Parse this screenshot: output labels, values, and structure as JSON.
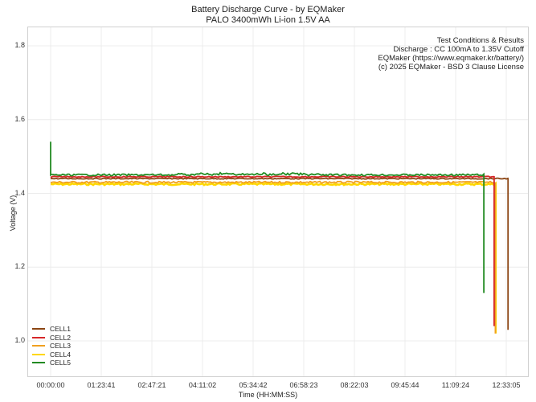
{
  "chart_data": {
    "type": "line",
    "title": "Battery Discharge Curve - by EQMaker",
    "subtitle": "PALO 3400mWh Li-ion 1.5V AA",
    "xlabel": "Time (HH:MM:SS)",
    "ylabel": "Voltage (V)",
    "ylim": [
      0.9,
      1.85
    ],
    "yticks": [
      "1.0",
      "1.2",
      "1.4",
      "1.6",
      "1.8"
    ],
    "xticks": [
      "00:00:00",
      "01:23:41",
      "02:47:21",
      "04:11:02",
      "05:34:42",
      "06:58:23",
      "08:22:03",
      "09:45:44",
      "11:09:24",
      "12:33:05"
    ],
    "grid": true,
    "legend_position": "lower left",
    "annotation": [
      "Test Conditions & Results",
      "Discharge : CC 100mA to 1.35V Cutoff",
      "EQMaker (https://www.eqmaker.kr/battery/)",
      "(c) 2025 EQMaker - BSD 3 Clause License"
    ],
    "series": [
      {
        "name": "CELL1",
        "color": "#8B4513",
        "plateau_v": 1.44,
        "end_time": "12:36:00",
        "end_v": 1.03
      },
      {
        "name": "CELL2",
        "color": "#D62728",
        "plateau_v": 1.445,
        "end_time": "12:13:00",
        "end_v": 1.04
      },
      {
        "name": "CELL3",
        "color": "#F0A020",
        "plateau_v": 1.43,
        "end_time": "12:15:00",
        "end_v": 1.02
      },
      {
        "name": "CELL4",
        "color": "#FFD700",
        "plateau_v": 1.425,
        "end_time": "12:15:30",
        "end_v": 1.02
      },
      {
        "name": "CELL5",
        "color": "#228B22",
        "plateau_v": 1.45,
        "start_v": 1.54,
        "end_time": "11:56:00",
        "end_v": 1.13
      }
    ]
  }
}
